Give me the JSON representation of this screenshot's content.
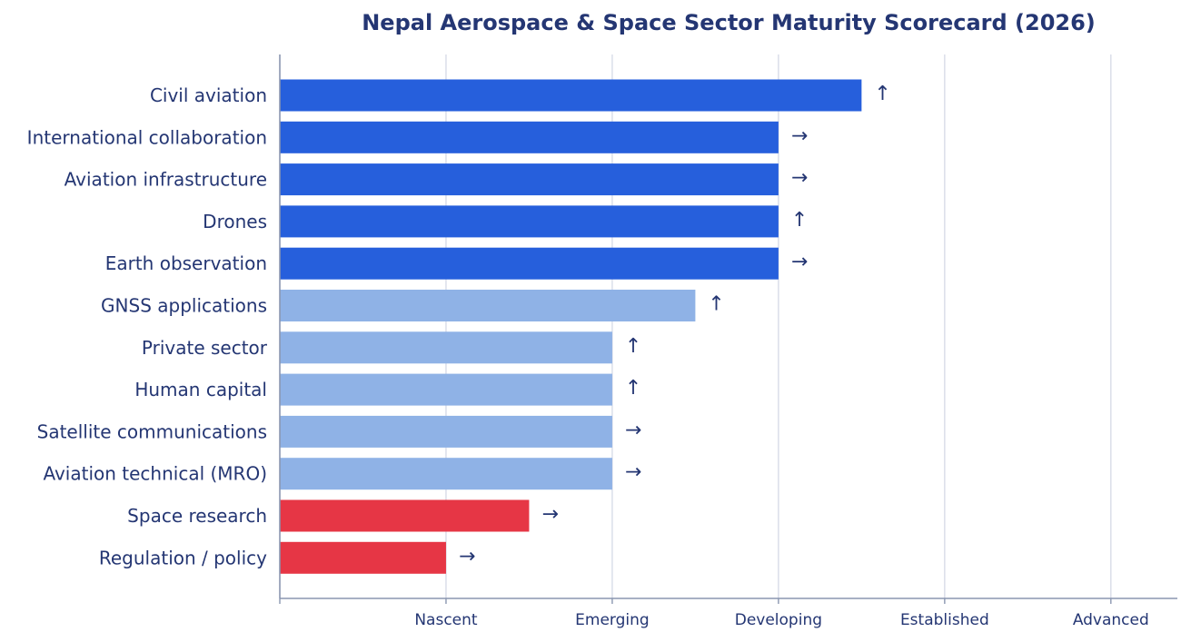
{
  "chart_data": {
    "type": "bar",
    "orientation": "horizontal",
    "title": "Nepal Aerospace & Space Sector Maturity Scorecard (2026)",
    "xlabel": "",
    "ylabel": "",
    "xlim": [
      0,
      5.4
    ],
    "x_ticks": [
      {
        "value": 0,
        "label": ""
      },
      {
        "value": 1,
        "label": "Nascent"
      },
      {
        "value": 2,
        "label": "Emerging"
      },
      {
        "value": 3,
        "label": "Developing"
      },
      {
        "value": 4,
        "label": "Established"
      },
      {
        "value": 5,
        "label": "Advanced"
      }
    ],
    "grid": "vertical",
    "categories": [
      "Civil aviation",
      "International collaboration",
      "Aviation infrastructure",
      "Drones",
      "Earth observation",
      "GNSS applications",
      "Private sector",
      "Human capital",
      "Satellite communications",
      "Aviation technical (MRO)",
      "Space research",
      "Regulation / policy"
    ],
    "values": [
      3.5,
      3.0,
      3.0,
      3.0,
      3.0,
      2.5,
      2.0,
      2.0,
      2.0,
      2.0,
      1.5,
      1.0
    ],
    "trends": [
      "↑",
      "→",
      "→",
      "↑",
      "→",
      "↑",
      "↑",
      "↑",
      "→",
      "→",
      "→",
      "→"
    ],
    "bar_colors": [
      "#265fdc",
      "#265fdc",
      "#265fdc",
      "#265fdc",
      "#265fdc",
      "#8fb2e6",
      "#8fb2e6",
      "#8fb2e6",
      "#8fb2e6",
      "#8fb2e6",
      "#e63645",
      "#e63645"
    ],
    "colors": {
      "text": "#243673",
      "grid": "#d5d9e6",
      "axis": "#8a96b0"
    }
  }
}
